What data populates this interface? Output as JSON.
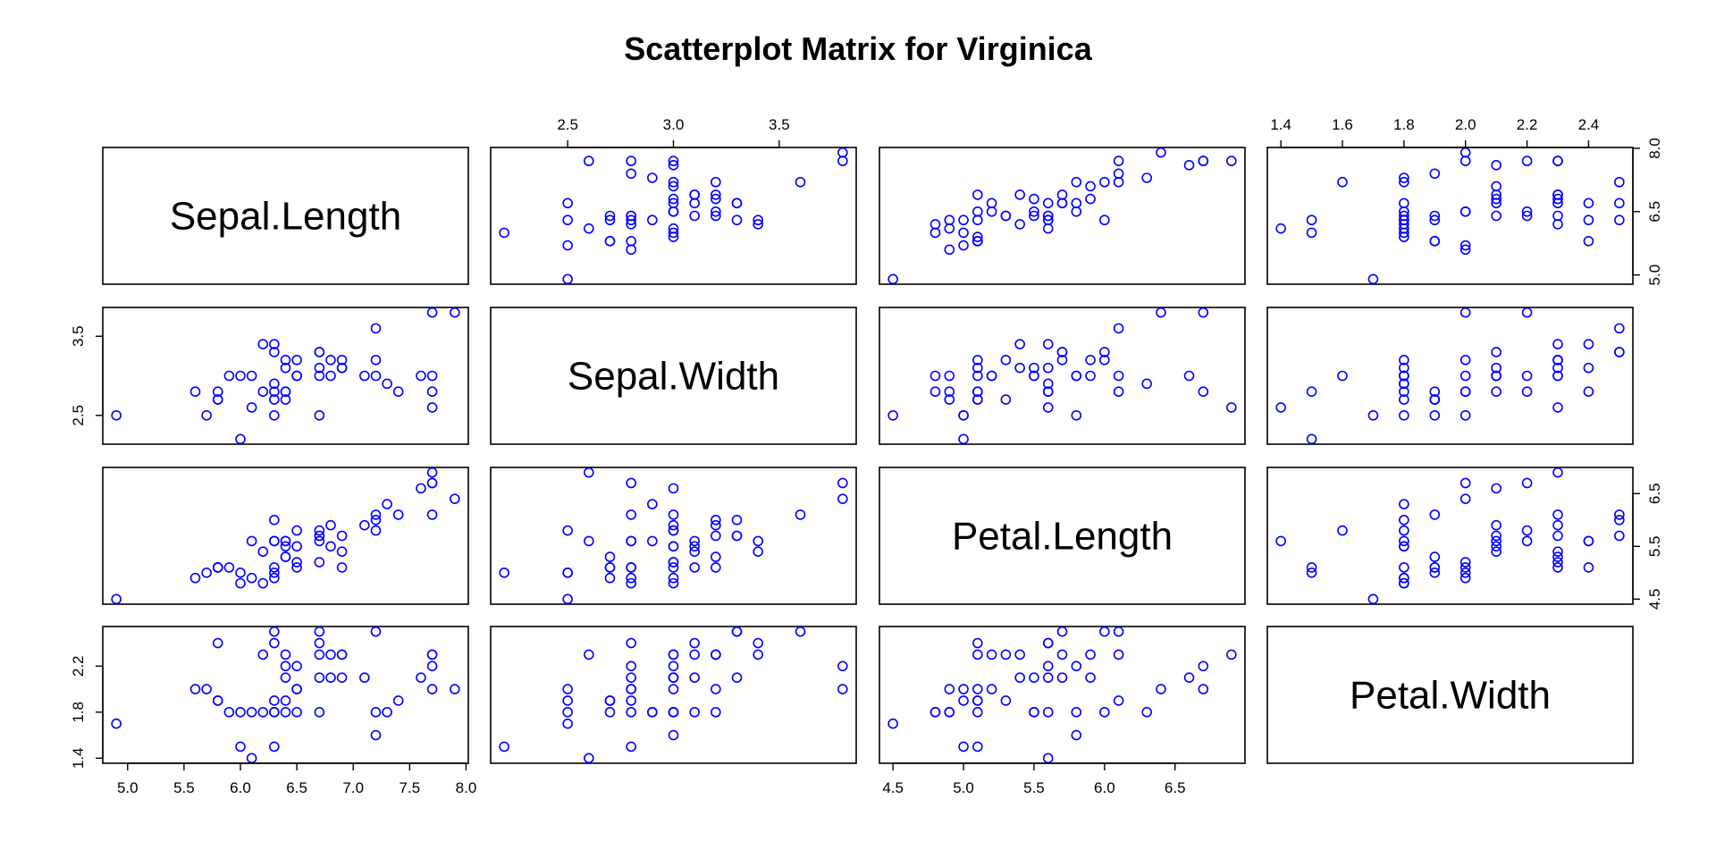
{
  "chart_data": {
    "type": "scatter",
    "title": "Scatterplot Matrix for Virginica",
    "variables": [
      "Sepal.Length",
      "Sepal.Width",
      "Petal.Length",
      "Petal.Width"
    ],
    "point_color": "#0000FF",
    "axes": {
      "Sepal.Length": {
        "range": [
          4.9,
          7.9
        ],
        "ticks": [
          "5.0",
          "5.5",
          "6.0",
          "6.5",
          "7.0",
          "7.5",
          "8.0"
        ],
        "right_ticks": [
          "5.0",
          "6.5",
          "8.0"
        ]
      },
      "Sepal.Width": {
        "range": [
          2.2,
          3.8
        ],
        "ticks": [
          "2.5",
          "3.0",
          "3.5"
        ],
        "left_ticks": [
          "2.5",
          "3.5"
        ]
      },
      "Petal.Length": {
        "range": [
          4.5,
          6.9
        ],
        "ticks": [
          "4.5",
          "5.0",
          "5.5",
          "6.0",
          "6.5"
        ],
        "right_ticks": [
          "4.5",
          "5.5",
          "6.5"
        ]
      },
      "Petal.Width": {
        "range": [
          1.4,
          2.5
        ],
        "ticks": [
          "1.4",
          "1.6",
          "1.8",
          "2.0",
          "2.2",
          "2.4"
        ],
        "left_ticks": [
          "1.4",
          "1.8",
          "2.2"
        ]
      }
    },
    "observations": [
      [
        6.3,
        3.3,
        6.0,
        2.5
      ],
      [
        5.8,
        2.7,
        5.1,
        1.9
      ],
      [
        7.1,
        3.0,
        5.9,
        2.1
      ],
      [
        6.3,
        2.9,
        5.6,
        1.8
      ],
      [
        6.5,
        3.0,
        5.8,
        2.2
      ],
      [
        7.6,
        3.0,
        6.6,
        2.1
      ],
      [
        4.9,
        2.5,
        4.5,
        1.7
      ],
      [
        7.3,
        2.9,
        6.3,
        1.8
      ],
      [
        6.7,
        2.5,
        5.8,
        1.8
      ],
      [
        7.2,
        3.6,
        6.1,
        2.5
      ],
      [
        6.5,
        3.2,
        5.1,
        2.0
      ],
      [
        6.4,
        2.7,
        5.3,
        1.9
      ],
      [
        6.8,
        3.0,
        5.5,
        2.1
      ],
      [
        5.7,
        2.5,
        5.0,
        2.0
      ],
      [
        5.8,
        2.8,
        5.1,
        2.4
      ],
      [
        6.4,
        3.2,
        5.3,
        2.3
      ],
      [
        6.5,
        3.0,
        5.5,
        1.8
      ],
      [
        7.7,
        3.8,
        6.7,
        2.2
      ],
      [
        7.7,
        2.6,
        6.9,
        2.3
      ],
      [
        6.0,
        2.2,
        5.0,
        1.5
      ],
      [
        6.9,
        3.2,
        5.7,
        2.3
      ],
      [
        5.6,
        2.8,
        4.9,
        2.0
      ],
      [
        7.7,
        2.8,
        6.7,
        2.0
      ],
      [
        6.3,
        2.7,
        4.9,
        1.8
      ],
      [
        6.7,
        3.3,
        5.7,
        2.1
      ],
      [
        7.2,
        3.2,
        6.0,
        1.8
      ],
      [
        6.2,
        2.8,
        4.8,
        1.8
      ],
      [
        6.1,
        3.0,
        4.9,
        1.8
      ],
      [
        6.4,
        2.8,
        5.6,
        2.1
      ],
      [
        7.2,
        3.0,
        5.8,
        1.6
      ],
      [
        7.4,
        2.8,
        6.1,
        1.9
      ],
      [
        7.9,
        3.8,
        6.4,
        2.0
      ],
      [
        6.4,
        2.8,
        5.6,
        2.2
      ],
      [
        6.3,
        2.8,
        5.1,
        1.5
      ],
      [
        6.1,
        2.6,
        5.6,
        1.4
      ],
      [
        7.7,
        3.0,
        6.1,
        2.3
      ],
      [
        6.3,
        3.4,
        5.6,
        2.4
      ],
      [
        6.4,
        3.1,
        5.5,
        1.8
      ],
      [
        6.0,
        3.0,
        4.8,
        1.8
      ],
      [
        6.9,
        3.1,
        5.4,
        2.1
      ],
      [
        6.7,
        3.1,
        5.6,
        2.4
      ],
      [
        6.9,
        3.1,
        5.1,
        2.3
      ],
      [
        5.8,
        2.7,
        5.1,
        1.9
      ],
      [
        6.8,
        3.2,
        5.9,
        2.3
      ],
      [
        6.7,
        3.3,
        5.7,
        2.5
      ],
      [
        6.7,
        3.0,
        5.2,
        2.3
      ],
      [
        6.3,
        2.5,
        5.0,
        1.9
      ],
      [
        6.5,
        3.0,
        5.2,
        2.0
      ],
      [
        6.2,
        3.4,
        5.4,
        2.3
      ],
      [
        5.9,
        3.0,
        5.1,
        1.8
      ]
    ]
  }
}
